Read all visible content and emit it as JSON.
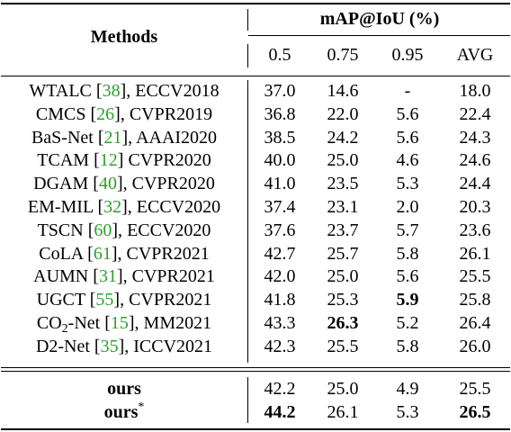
{
  "header": {
    "methods": "Methods",
    "map_title": "mAP@IoU (%)",
    "columns": [
      "0.5",
      "0.75",
      "0.95",
      "AVG"
    ]
  },
  "rows": [
    {
      "name": "WTALC",
      "cite": "38",
      "venue": "ECCV2018",
      "sep": ", ",
      "values": [
        "37.0",
        "14.6",
        "-",
        "18.0"
      ]
    },
    {
      "name": "CMCS",
      "cite": "26",
      "venue": "CVPR2019",
      "sep": ", ",
      "values": [
        "36.8",
        "22.0",
        "5.6",
        "22.4"
      ]
    },
    {
      "name": "BaS-Net",
      "cite": "21",
      "venue": "AAAI2020",
      "sep": ", ",
      "values": [
        "38.5",
        "24.2",
        "5.6",
        "24.3"
      ]
    },
    {
      "name": "TCAM",
      "cite": "12",
      "venue": "CVPR2020",
      "sep": " ",
      "values": [
        "40.0",
        "25.0",
        "4.6",
        "24.6"
      ]
    },
    {
      "name": "DGAM",
      "cite": "40",
      "venue": "CVPR2020",
      "sep": ", ",
      "values": [
        "41.0",
        "23.5",
        "5.3",
        "24.4"
      ]
    },
    {
      "name": "EM-MIL",
      "cite": "32",
      "venue": "ECCV2020",
      "sep": ", ",
      "values": [
        "37.4",
        "23.1",
        "2.0",
        "20.3"
      ]
    },
    {
      "name": "TSCN",
      "cite": "60",
      "venue": "ECCV2020",
      "sep": ", ",
      "values": [
        "37.6",
        "23.7",
        "5.7",
        "23.6"
      ]
    },
    {
      "name": "CoLA",
      "cite": "61",
      "venue": "CVPR2021",
      "sep": ", ",
      "values": [
        "42.7",
        "25.7",
        "5.8",
        "26.1"
      ]
    },
    {
      "name": "AUMN",
      "cite": "31",
      "venue": "CVPR2021",
      "sep": ", ",
      "values": [
        "42.0",
        "25.0",
        "5.6",
        "25.5"
      ]
    },
    {
      "name": "UGCT",
      "cite": "55",
      "venue": "CVPR2021",
      "sep": ", ",
      "values": [
        "41.8",
        "25.3",
        "5.9",
        "25.8"
      ],
      "bold": [
        false,
        false,
        true,
        false
      ]
    },
    {
      "name": "CO",
      "name_sub": "2",
      "name_rest": "-Net",
      "cite": "15",
      "venue": "MM2021",
      "sep": ", ",
      "values": [
        "43.3",
        "26.3",
        "5.2",
        "26.4"
      ],
      "bold": [
        false,
        true,
        false,
        false
      ]
    },
    {
      "name": "D2-Net",
      "cite": "35",
      "venue": "ICCV2021",
      "sep": ", ",
      "values": [
        "42.3",
        "25.5",
        "5.8",
        "26.0"
      ]
    }
  ],
  "ours_rows": [
    {
      "name": "ours",
      "sup": "",
      "values": [
        "42.2",
        "25.0",
        "4.9",
        "25.5"
      ],
      "bold": [
        false,
        false,
        false,
        false
      ]
    },
    {
      "name": "ours",
      "sup": "*",
      "values": [
        "44.2",
        "26.1",
        "5.3",
        "26.5"
      ],
      "bold": [
        true,
        false,
        false,
        true
      ]
    }
  ]
}
